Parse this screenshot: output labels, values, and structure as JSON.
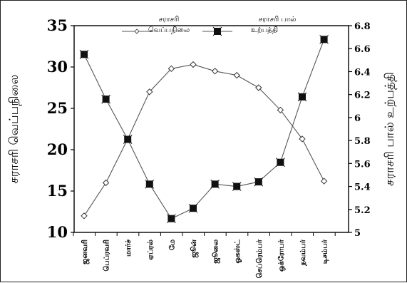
{
  "chart_data": {
    "type": "line",
    "categories": [
      "ஜனவரி",
      "பெப்ரவரி",
      "மார்ச்",
      "ஏப்ரல்",
      "மே",
      "ஜூன்",
      "ஜூலை",
      "ஓகஸ்ட்",
      "செப்ரெம்பர்",
      "ஒக்ரோபர்",
      "நவம்பர்",
      "டிசம்பர்"
    ],
    "series": [
      {
        "name": "சராசரி வெப்பநிலை",
        "axis": "left",
        "marker": "diamond",
        "values": [
          12.0,
          16.0,
          21.3,
          27.0,
          29.8,
          30.3,
          29.5,
          29.0,
          27.5,
          24.8,
          21.3,
          16.2
        ]
      },
      {
        "name": "சராசரி பால் உற்பத்தி",
        "axis": "right",
        "marker": "square",
        "values": [
          6.55,
          6.16,
          5.81,
          5.42,
          5.12,
          5.21,
          5.42,
          5.4,
          5.44,
          5.61,
          6.18,
          6.68
        ]
      }
    ],
    "ylabel": "சராசரி வெப்பநிலை",
    "y2label": "சராசரி பால் உற்பத்தி",
    "ylim": [
      10,
      35
    ],
    "y2lim": [
      5,
      6.8
    ],
    "yticks": [
      "10",
      "15",
      "20",
      "25",
      "30",
      "35"
    ],
    "y2ticks": [
      "5",
      "5.2",
      "5.4",
      "5.6",
      "5.8",
      "6",
      "6.2",
      "6.4",
      "6.6",
      "6.8"
    ],
    "legend": [
      {
        "line1": "சராசரி",
        "line2": "வெப்பநிலை"
      },
      {
        "line1": "சராசரி பால்",
        "line2": "உற்பத்தி"
      }
    ],
    "legend_position": "top-center",
    "grid": false
  }
}
